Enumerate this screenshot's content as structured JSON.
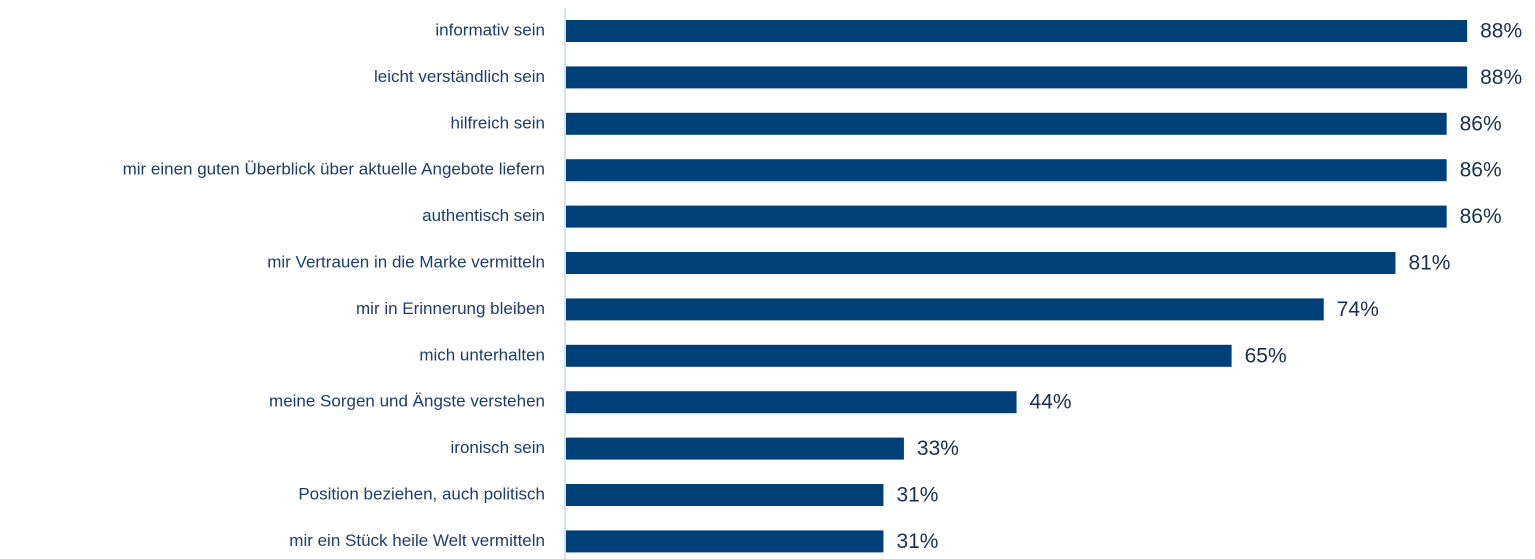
{
  "chart_data": {
    "type": "bar",
    "orientation": "horizontal",
    "color": "#004079",
    "categories": [
      "informativ sein",
      "leicht verständlich sein",
      "hilfreich sein",
      "mir einen guten Überblick über aktuelle Angebote liefern",
      "authentisch sein",
      "mir Vertrauen in die Marke vermitteln",
      "mir in Erinnerung bleiben",
      "mich unterhalten",
      "meine Sorgen und Ängste verstehen",
      "ironisch sein",
      "Position beziehen, auch politisch",
      "mir ein Stück heile Welt vermitteln"
    ],
    "values": [
      88,
      88,
      86,
      86,
      86,
      81,
      74,
      65,
      44,
      33,
      31,
      31
    ],
    "value_labels": [
      "88%",
      "88%",
      "86%",
      "86%",
      "86%",
      "81%",
      "74%",
      "65%",
      "44%",
      "33%",
      "31%",
      "31%"
    ]
  }
}
